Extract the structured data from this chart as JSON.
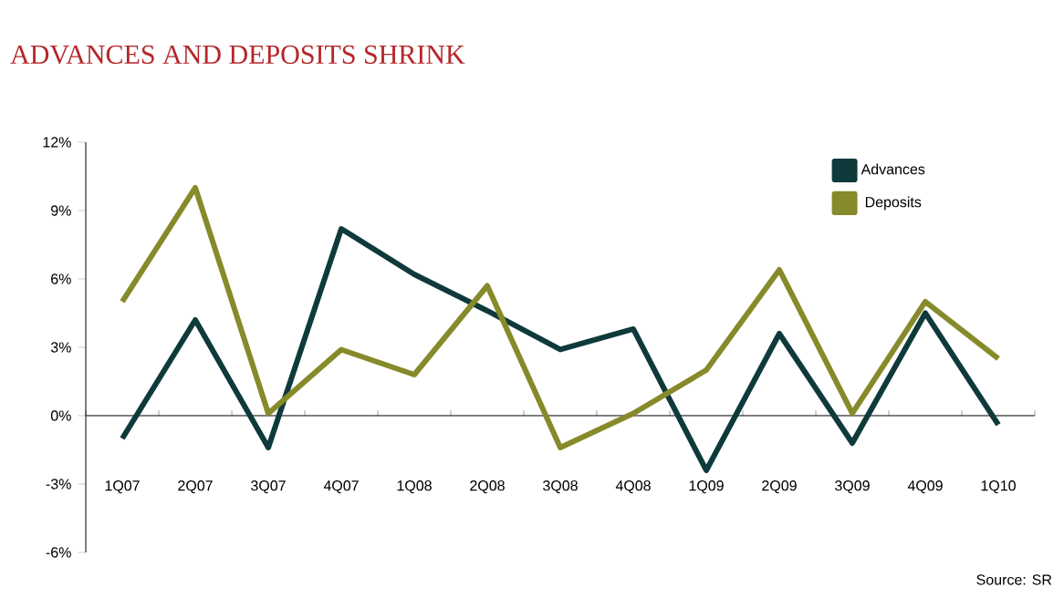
{
  "chart_data": {
    "type": "line",
    "title": "ADVANCES AND DEPOSITS SHRINK",
    "categories": [
      "1Q07",
      "2Q07",
      "3Q07",
      "4Q07",
      "1Q08",
      "2Q08",
      "3Q08",
      "4Q08",
      "1Q09",
      "2Q09",
      "3Q09",
      "4Q09",
      "1Q10"
    ],
    "series": [
      {
        "name": "Advances",
        "color": "#0f3a3c",
        "values": [
          -1.0,
          4.2,
          -1.4,
          8.2,
          6.2,
          4.6,
          2.9,
          3.8,
          -2.4,
          3.6,
          -1.2,
          4.5,
          -0.4
        ]
      },
      {
        "name": "Deposits",
        "color": "#868a2a",
        "values": [
          5.0,
          10.0,
          0.1,
          2.9,
          1.8,
          5.7,
          -1.4,
          0.1,
          2.0,
          6.4,
          0.1,
          5.0,
          2.5
        ]
      }
    ],
    "ylim": [
      -6,
      12
    ],
    "yticks": [
      {
        "value": -6,
        "label": "-6%"
      },
      {
        "value": -3,
        "label": "-3%"
      },
      {
        "value": 0,
        "label": "0%"
      },
      {
        "value": 3,
        "label": "3%"
      },
      {
        "value": 6,
        "label": "6%"
      },
      {
        "value": 9,
        "label": "9%"
      },
      {
        "value": 12,
        "label": "12%"
      }
    ],
    "legend": "top right",
    "marker": "none",
    "line_style": "solid",
    "annotations": [
      "Source: SR"
    ]
  }
}
